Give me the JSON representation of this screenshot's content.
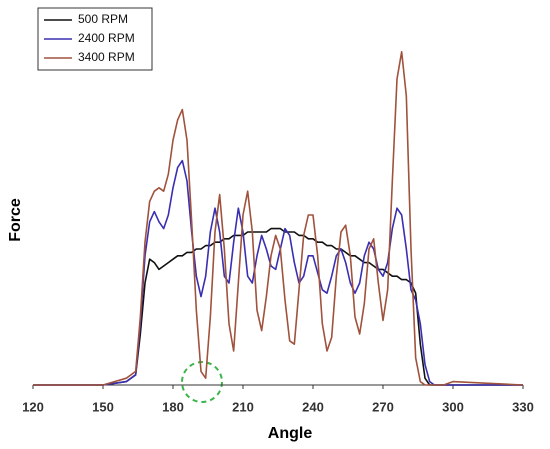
{
  "chart_data": {
    "type": "line",
    "xlabel": "Angle",
    "ylabel": "Force",
    "x": [
      120,
      150,
      160,
      164,
      166,
      168,
      170,
      172,
      174,
      176,
      178,
      180,
      182,
      184,
      186,
      188,
      190,
      192,
      194,
      196,
      198,
      200,
      202,
      204,
      206,
      208,
      210,
      212,
      214,
      216,
      218,
      220,
      222,
      224,
      226,
      228,
      230,
      232,
      234,
      236,
      238,
      240,
      242,
      244,
      246,
      248,
      250,
      252,
      254,
      256,
      258,
      260,
      262,
      264,
      266,
      268,
      270,
      272,
      274,
      276,
      278,
      280,
      282,
      284,
      286,
      288,
      290,
      292,
      296,
      300,
      330
    ],
    "series": [
      {
        "name": "500 RPM",
        "color": "#111111",
        "values": [
          0,
          0,
          1,
          3,
          15,
          30,
          37,
          36,
          34,
          35,
          36,
          37,
          38,
          38,
          39,
          39,
          40,
          40,
          41,
          41,
          42,
          42,
          43,
          43,
          44,
          44,
          44,
          45,
          45,
          45,
          45,
          45,
          46,
          46,
          46,
          45,
          45,
          45,
          44,
          44,
          43,
          43,
          42,
          42,
          41,
          41,
          40,
          40,
          39,
          38,
          38,
          37,
          36,
          36,
          35,
          34,
          34,
          33,
          32,
          32,
          31,
          31,
          30,
          27,
          12,
          2,
          0,
          0,
          0,
          0,
          0
        ]
      },
      {
        "name": "2400 RPM",
        "color": "#3a2fb0",
        "values": [
          0,
          0,
          1,
          3,
          18,
          38,
          48,
          51,
          48,
          46,
          50,
          58,
          64,
          66,
          60,
          45,
          32,
          26,
          32,
          45,
          52,
          45,
          32,
          30,
          42,
          52,
          45,
          32,
          30,
          38,
          44,
          40,
          35,
          34,
          40,
          46,
          44,
          36,
          30,
          32,
          38,
          38,
          33,
          28,
          27,
          32,
          38,
          40,
          36,
          30,
          27,
          30,
          38,
          42,
          40,
          34,
          32,
          36,
          46,
          52,
          50,
          40,
          28,
          25,
          18,
          6,
          1,
          0,
          0,
          0,
          0
        ]
      },
      {
        "name": "3400 RPM",
        "color": "#a0523c",
        "values": [
          0,
          0,
          2,
          4,
          20,
          42,
          54,
          57,
          58,
          57,
          62,
          72,
          78,
          81,
          72,
          48,
          22,
          4,
          2,
          20,
          45,
          56,
          40,
          18,
          10,
          30,
          50,
          57,
          45,
          22,
          16,
          26,
          38,
          44,
          40,
          25,
          13,
          12,
          28,
          44,
          50,
          50,
          38,
          18,
          10,
          14,
          32,
          45,
          47,
          38,
          20,
          15,
          24,
          40,
          43,
          30,
          19,
          28,
          60,
          90,
          98,
          85,
          40,
          8,
          1,
          0,
          0,
          0,
          0,
          1,
          0
        ]
      }
    ],
    "xlim": [
      120,
      330
    ],
    "xticks": [
      120,
      150,
      180,
      210,
      240,
      270,
      300,
      330
    ],
    "ylim": [
      0,
      100
    ],
    "legend": "upper left"
  }
}
